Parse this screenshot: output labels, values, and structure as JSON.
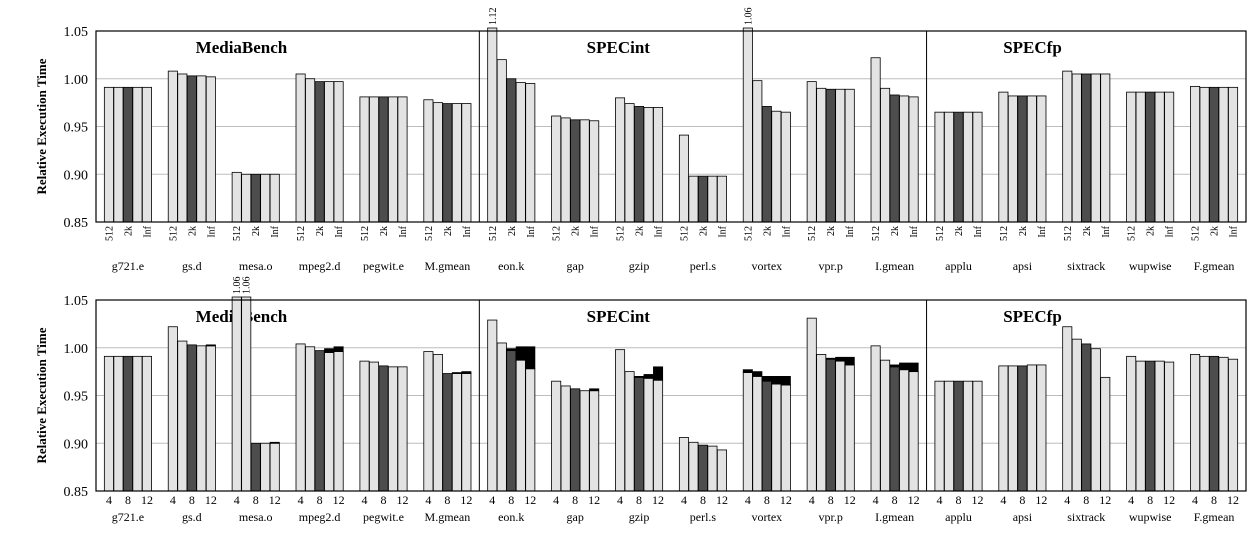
{
  "chart_data": [
    {
      "type": "bar",
      "ylabel": "Relative Execution Time",
      "ylim": [
        0.85,
        1.05
      ],
      "yticks": [
        "0.85",
        "0.90",
        "0.95",
        "1.00",
        "1.05"
      ],
      "grid": true,
      "suites": [
        {
          "label": "MediaBench",
          "benchmarks": 6
        },
        {
          "label": "SPECint",
          "benchmarks": 7
        },
        {
          "label": "SPECfp",
          "benchmarks": 5
        }
      ],
      "config_labels": [
        "512",
        "2k",
        "Inf"
      ],
      "benchmarks": [
        {
          "name": "g721.e",
          "values": [
            0.991,
            0.991,
            0.991,
            0.991,
            0.991
          ]
        },
        {
          "name": "gs.d",
          "values": [
            1.008,
            1.005,
            1.003,
            1.003,
            1.002
          ]
        },
        {
          "name": "mesa.o",
          "values": [
            0.902,
            0.9,
            0.9,
            0.9,
            0.9
          ]
        },
        {
          "name": "mpeg2.d",
          "values": [
            1.005,
            1.0,
            0.997,
            0.997,
            0.997
          ]
        },
        {
          "name": "pegwit.e",
          "values": [
            0.981,
            0.981,
            0.981,
            0.981,
            0.981
          ]
        },
        {
          "name": "M.gmean",
          "values": [
            0.978,
            0.975,
            0.974,
            0.974,
            0.974
          ]
        },
        {
          "name": "eon.k",
          "values": [
            1.12,
            1.02,
            1.0,
            0.996,
            0.995
          ],
          "labels": [
            "1.12",
            "",
            "",
            "",
            ""
          ]
        },
        {
          "name": "gap",
          "values": [
            0.961,
            0.959,
            0.957,
            0.957,
            0.956
          ]
        },
        {
          "name": "gzip",
          "values": [
            0.98,
            0.974,
            0.971,
            0.97,
            0.97
          ]
        },
        {
          "name": "perl.s",
          "values": [
            0.941,
            0.898,
            0.898,
            0.898,
            0.898
          ]
        },
        {
          "name": "vortex",
          "values": [
            1.06,
            0.998,
            0.971,
            0.966,
            0.965
          ],
          "labels": [
            "1.06",
            "",
            "",
            "",
            ""
          ]
        },
        {
          "name": "vpr.p",
          "values": [
            0.997,
            0.99,
            0.989,
            0.989,
            0.989
          ]
        },
        {
          "name": "I.gmean",
          "values": [
            1.022,
            0.99,
            0.983,
            0.982,
            0.981
          ]
        },
        {
          "name": "applu",
          "values": [
            0.965,
            0.965,
            0.965,
            0.965,
            0.965
          ]
        },
        {
          "name": "apsi",
          "values": [
            0.986,
            0.982,
            0.982,
            0.982,
            0.982
          ]
        },
        {
          "name": "sixtrack",
          "values": [
            1.008,
            1.005,
            1.005,
            1.005,
            1.005
          ]
        },
        {
          "name": "wupwise",
          "values": [
            0.986,
            0.986,
            0.986,
            0.986,
            0.986
          ]
        },
        {
          "name": "F.gmean",
          "values": [
            0.992,
            0.991,
            0.991,
            0.991,
            0.991
          ]
        }
      ]
    },
    {
      "type": "bar",
      "ylabel": "Relative Execution Time",
      "ylim": [
        0.85,
        1.05
      ],
      "yticks": [
        "0.85",
        "0.90",
        "0.95",
        "1.00",
        "1.05"
      ],
      "grid": true,
      "suites": [
        {
          "label": "MediaBench",
          "benchmarks": 6
        },
        {
          "label": "SPECint",
          "benchmarks": 7
        },
        {
          "label": "SPECfp",
          "benchmarks": 5
        }
      ],
      "config_labels": [
        "4",
        "8",
        "12"
      ],
      "benchmarks": [
        {
          "name": "g721.e",
          "values": [
            0.991,
            0.991,
            0.991,
            0.991,
            0.991
          ]
        },
        {
          "name": "gs.d",
          "values": [
            1.022,
            1.007,
            1.003,
            1.002,
            1.002
          ],
          "stack_tops": [
            null,
            null,
            null,
            null,
            1.003
          ]
        },
        {
          "name": "mesa.o",
          "values": [
            1.06,
            1.06,
            0.9,
            0.9,
            0.9
          ],
          "labels": [
            "1.06",
            "1.06",
            "",
            "",
            ""
          ],
          "stack_tops": [
            null,
            null,
            null,
            null,
            0.901
          ]
        },
        {
          "name": "mpeg2.d",
          "values": [
            1.004,
            1.001,
            0.997,
            0.995,
            0.996
          ],
          "stack_tops": [
            null,
            null,
            null,
            0.999,
            1.001
          ]
        },
        {
          "name": "pegwit.e",
          "values": [
            0.986,
            0.985,
            0.981,
            0.98,
            0.98
          ]
        },
        {
          "name": "M.gmean",
          "values": [
            0.996,
            0.993,
            0.973,
            0.973,
            0.973
          ],
          "stack_tops": [
            null,
            null,
            null,
            0.974,
            0.975
          ]
        },
        {
          "name": "eon.k",
          "values": [
            1.029,
            1.005,
            0.997,
            0.987,
            0.978
          ],
          "stack_tops": [
            null,
            null,
            0.999,
            1.001,
            1.001
          ]
        },
        {
          "name": "gap",
          "values": [
            0.965,
            0.96,
            0.957,
            0.955,
            0.955
          ],
          "stack_tops": [
            null,
            null,
            null,
            null,
            0.957
          ]
        },
        {
          "name": "gzip",
          "values": [
            0.998,
            0.975,
            0.969,
            0.968,
            0.966
          ],
          "stack_tops": [
            null,
            null,
            0.97,
            0.972,
            0.98
          ]
        },
        {
          "name": "perl.s",
          "values": [
            0.906,
            0.901,
            0.898,
            0.897,
            0.893
          ]
        },
        {
          "name": "vortex",
          "values": [
            0.974,
            0.97,
            0.965,
            0.962,
            0.961
          ],
          "stack_tops": [
            0.977,
            0.975,
            0.97,
            0.97,
            0.97
          ]
        },
        {
          "name": "vpr.p",
          "values": [
            1.031,
            0.993,
            0.988,
            0.986,
            0.982
          ],
          "stack_tops": [
            null,
            null,
            0.989,
            0.99,
            0.99
          ]
        },
        {
          "name": "I.gmean",
          "values": [
            1.002,
            0.987,
            0.98,
            0.977,
            0.975
          ],
          "stack_tops": [
            null,
            null,
            0.982,
            0.984,
            0.984
          ]
        },
        {
          "name": "applu",
          "values": [
            0.965,
            0.965,
            0.965,
            0.965,
            0.965
          ]
        },
        {
          "name": "apsi",
          "values": [
            0.981,
            0.981,
            0.981,
            0.982,
            0.982
          ]
        },
        {
          "name": "sixtrack",
          "values": [
            1.022,
            1.009,
            1.004,
            0.999,
            0.969
          ]
        },
        {
          "name": "wupwise",
          "values": [
            0.991,
            0.986,
            0.986,
            0.986,
            0.985
          ]
        },
        {
          "name": "F.gmean",
          "values": [
            0.993,
            0.991,
            0.991,
            0.99,
            0.988
          ]
        }
      ]
    }
  ],
  "colors": {
    "light_bar": "#e3e3e3",
    "dark_bar": "#4d4d4d",
    "stack_segment": "#000000",
    "outline": "#000000",
    "grid": "#bdbdbd"
  }
}
